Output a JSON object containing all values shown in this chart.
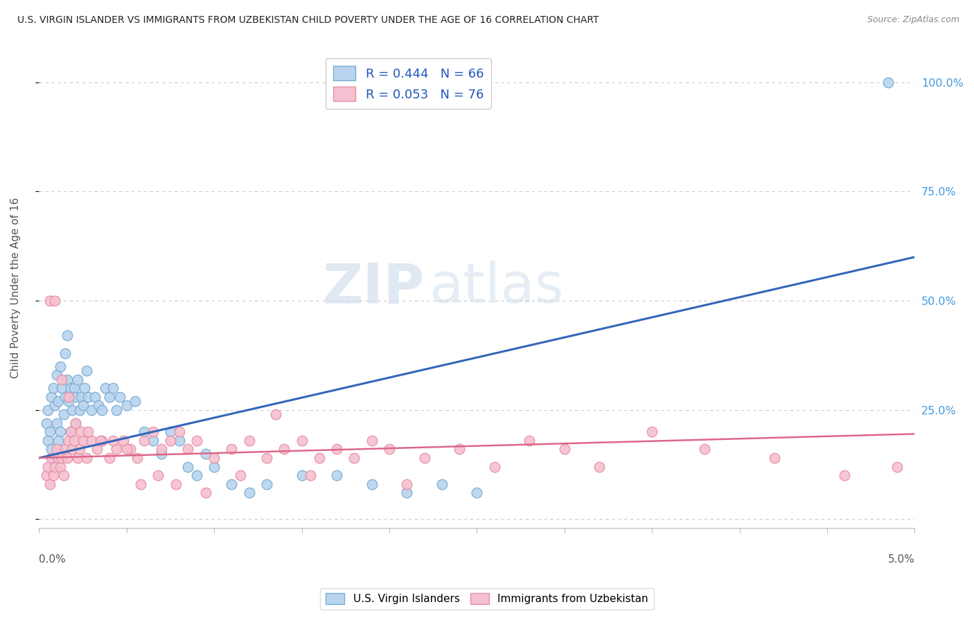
{
  "title": "U.S. VIRGIN ISLANDER VS IMMIGRANTS FROM UZBEKISTAN CHILD POVERTY UNDER THE AGE OF 16 CORRELATION CHART",
  "source": "Source: ZipAtlas.com",
  "ylabel": "Child Poverty Under the Age of 16",
  "xlim": [
    0.0,
    5.0
  ],
  "ylim": [
    -2.0,
    108.0
  ],
  "yticks": [
    0,
    25,
    50,
    75,
    100
  ],
  "ytick_labels": [
    "",
    "25.0%",
    "50.0%",
    "75.0%",
    "100.0%"
  ],
  "watermark_zip": "ZIP",
  "watermark_atlas": "atlas",
  "series1": {
    "label": "U.S. Virgin Islanders",
    "color": "#b8d4ee",
    "border_color": "#7aadd4",
    "R": 0.444,
    "N": 66,
    "line_color": "#3366bb",
    "trend_x": [
      0.0,
      5.0
    ],
    "trend_y": [
      14.0,
      60.0
    ]
  },
  "series2": {
    "label": "Immigrants from Uzbekistan",
    "color": "#f5c0cf",
    "border_color": "#e890a8",
    "R": 0.053,
    "N": 76,
    "line_color": "#dd6688",
    "trend_x": [
      0.0,
      5.0
    ],
    "trend_y": [
      14.0,
      19.5
    ]
  },
  "scatter1_x": [
    0.04,
    0.05,
    0.06,
    0.07,
    0.08,
    0.09,
    0.1,
    0.1,
    0.11,
    0.12,
    0.12,
    0.13,
    0.14,
    0.15,
    0.15,
    0.16,
    0.17,
    0.18,
    0.18,
    0.19,
    0.2,
    0.21,
    0.22,
    0.23,
    0.24,
    0.25,
    0.26,
    0.27,
    0.28,
    0.3,
    0.32,
    0.34,
    0.36,
    0.38,
    0.4,
    0.42,
    0.44,
    0.46,
    0.5,
    0.55,
    0.6,
    0.65,
    0.7,
    0.75,
    0.8,
    0.85,
    0.9,
    0.95,
    1.0,
    1.1,
    1.2,
    1.3,
    1.5,
    1.7,
    1.9,
    2.1,
    2.3,
    2.5,
    0.05,
    0.07,
    0.09,
    0.11,
    0.13,
    0.16,
    0.21,
    4.85
  ],
  "scatter1_y": [
    22,
    25,
    20,
    28,
    30,
    26,
    33,
    22,
    27,
    35,
    20,
    30,
    24,
    38,
    28,
    32,
    27,
    30,
    20,
    25,
    30,
    28,
    32,
    25,
    28,
    26,
    30,
    34,
    28,
    25,
    28,
    26,
    25,
    30,
    28,
    30,
    25,
    28,
    26,
    27,
    20,
    18,
    15,
    20,
    18,
    12,
    10,
    15,
    12,
    8,
    6,
    8,
    10,
    10,
    8,
    6,
    8,
    6,
    18,
    16,
    14,
    18,
    15,
    42,
    22,
    100
  ],
  "scatter2_x": [
    0.04,
    0.05,
    0.06,
    0.07,
    0.08,
    0.09,
    0.1,
    0.11,
    0.12,
    0.13,
    0.14,
    0.15,
    0.16,
    0.17,
    0.18,
    0.19,
    0.2,
    0.21,
    0.22,
    0.23,
    0.25,
    0.27,
    0.3,
    0.33,
    0.36,
    0.4,
    0.44,
    0.48,
    0.52,
    0.56,
    0.6,
    0.65,
    0.7,
    0.75,
    0.8,
    0.85,
    0.9,
    1.0,
    1.1,
    1.2,
    1.3,
    1.4,
    1.5,
    1.6,
    1.7,
    1.8,
    1.9,
    2.0,
    2.1,
    2.2,
    2.4,
    2.6,
    2.8,
    3.0,
    3.2,
    3.5,
    3.8,
    4.2,
    4.6,
    4.9,
    0.06,
    0.09,
    0.13,
    0.17,
    0.24,
    0.28,
    0.35,
    0.42,
    0.5,
    0.58,
    0.68,
    0.78,
    0.95,
    1.15,
    1.35,
    1.55
  ],
  "scatter2_y": [
    10,
    12,
    8,
    14,
    10,
    12,
    16,
    14,
    12,
    14,
    10,
    16,
    14,
    18,
    20,
    16,
    18,
    22,
    14,
    16,
    18,
    14,
    18,
    16,
    18,
    14,
    16,
    18,
    16,
    14,
    18,
    20,
    16,
    18,
    20,
    16,
    18,
    14,
    16,
    18,
    14,
    16,
    18,
    14,
    16,
    14,
    18,
    16,
    8,
    14,
    16,
    12,
    18,
    16,
    12,
    20,
    16,
    14,
    10,
    12,
    50,
    50,
    32,
    28,
    20,
    20,
    18,
    18,
    16,
    8,
    10,
    8,
    6,
    10,
    24,
    10
  ],
  "background_color": "#ffffff",
  "grid_color": "#cccccc",
  "title_color": "#222222",
  "axis_label_color": "#555555",
  "right_tick_color": "#4499dd",
  "source_color": "#888888"
}
